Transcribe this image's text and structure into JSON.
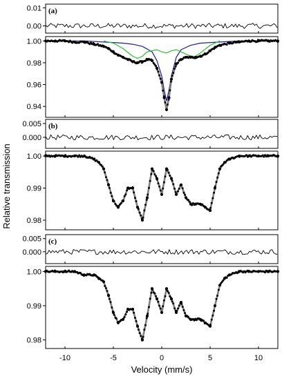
{
  "chart_data": {
    "type": "scatter",
    "xlabel": "Velocity (mm/s)",
    "ylabel": "Relative transmission",
    "xlim": [
      -12,
      12
    ],
    "x_ticks": [
      -10,
      -5,
      0,
      5,
      10
    ],
    "x_tick_labels": [
      "-10",
      "-5",
      "0",
      "5",
      "10"
    ],
    "colors": {
      "data_points": "#000000",
      "fit_total": "#7f7f7f",
      "residual": "#000000",
      "component_blue": "#1c1ca0",
      "component_green": "#22c822"
    },
    "panels": [
      {
        "label": "(a)",
        "residual_ylim": [
          -0.004,
          0.012
        ],
        "residual_ticks": [
          0.01,
          0.0
        ],
        "residual_tick_labels": [
          "0.01",
          "0.00"
        ],
        "spectrum_ylim": [
          0.93,
          1.004
        ],
        "spectrum_ticks": [
          1.0,
          0.98,
          0.96,
          0.94
        ],
        "spectrum_tick_labels": [
          "1.00",
          "0.98",
          "0.96",
          "0.94"
        ],
        "points_x": [
          -12,
          -11,
          -10,
          -9,
          -8,
          -7,
          -6,
          -5.5,
          -5,
          -4.5,
          -4,
          -3.5,
          -3,
          -2.5,
          -2,
          -1.5,
          -1,
          -0.5,
          0,
          0.25,
          0.5,
          0.75,
          1,
          1.5,
          2,
          2.5,
          3,
          3.5,
          4,
          4.5,
          5,
          5.5,
          6,
          7,
          8,
          9,
          10,
          11,
          12
        ],
        "points_y": [
          1.0,
          1.0,
          1.0,
          0.999,
          0.999,
          0.997,
          0.995,
          0.993,
          0.99,
          0.987,
          0.985,
          0.983,
          0.981,
          0.98,
          0.981,
          0.983,
          0.982,
          0.975,
          0.962,
          0.948,
          0.937,
          0.948,
          0.965,
          0.979,
          0.983,
          0.985,
          0.985,
          0.985,
          0.986,
          0.988,
          0.991,
          0.994,
          0.996,
          0.998,
          0.999,
          1.0,
          1.0,
          1.0,
          1.0
        ],
        "components": [
          {
            "color": "component_blue",
            "x": [
              -12,
              -8,
              -6,
              -4,
              -3,
              -2,
              -1,
              -0.5,
              0,
              0.25,
              0.5,
              0.75,
              1,
              1.5,
              2,
              3,
              4,
              6,
              8,
              12
            ],
            "y": [
              1.0,
              1.0,
              0.999,
              0.998,
              0.997,
              0.995,
              0.99,
              0.982,
              0.968,
              0.955,
              0.945,
              0.955,
              0.968,
              0.985,
              0.992,
              0.996,
              0.998,
              0.999,
              1.0,
              1.0
            ]
          },
          {
            "color": "component_green",
            "x": [
              -6,
              -5,
              -4,
              -3,
              -2.5,
              -2,
              -1.5,
              -1,
              -0.5,
              0,
              0.5,
              1,
              1.5,
              2,
              2.5,
              3,
              3.5,
              4,
              5,
              6
            ],
            "y": [
              1.0,
              0.998,
              0.993,
              0.986,
              0.984,
              0.986,
              0.99,
              0.991,
              0.992,
              0.99,
              0.989,
              0.991,
              0.992,
              0.99,
              0.988,
              0.986,
              0.986,
              0.989,
              0.996,
              1.0
            ]
          }
        ]
      },
      {
        "label": "(b)",
        "residual_ylim": [
          -0.004,
          0.0065
        ],
        "residual_ticks": [
          0.005,
          0.0
        ],
        "residual_tick_labels": [
          "0.005",
          "0.000"
        ],
        "spectrum_ylim": [
          0.977,
          1.0015
        ],
        "spectrum_ticks": [
          1.0,
          0.99,
          0.98
        ],
        "spectrum_tick_labels": [
          "1.00",
          "0.99",
          "0.98"
        ],
        "points_x": [
          -12,
          -11,
          -10,
          -9,
          -8,
          -7,
          -6.5,
          -6,
          -5.5,
          -5,
          -4.5,
          -4,
          -3.5,
          -3,
          -2.5,
          -2,
          -1.5,
          -1,
          -0.5,
          0,
          0.5,
          1,
          1.5,
          2,
          2.5,
          3,
          3.5,
          4,
          4.5,
          5,
          5.5,
          6,
          6.5,
          7,
          8,
          9,
          10,
          11,
          12
        ],
        "points_y": [
          1.0,
          1.0,
          1.0,
          1.0,
          1.0,
          0.999,
          0.998,
          0.996,
          0.991,
          0.986,
          0.984,
          0.986,
          0.99,
          0.99,
          0.984,
          0.98,
          0.987,
          0.996,
          0.993,
          0.988,
          0.996,
          0.993,
          0.988,
          0.991,
          0.987,
          0.985,
          0.985,
          0.985,
          0.984,
          0.983,
          0.99,
          0.996,
          0.998,
          0.999,
          1.0,
          1.0,
          1.0,
          1.0,
          1.0
        ]
      },
      {
        "label": "(c)",
        "residual_ylim": [
          -0.0045,
          0.0065
        ],
        "residual_ticks": [
          0.005,
          0.0
        ],
        "residual_tick_labels": [
          "0.005",
          "0.000"
        ],
        "spectrum_ylim": [
          0.9775,
          1.0015
        ],
        "spectrum_ticks": [
          1.0,
          0.99,
          0.98
        ],
        "spectrum_tick_labels": [
          "1.00",
          "0.99",
          "0.98"
        ],
        "points_x": [
          -12,
          -11,
          -10,
          -9,
          -8,
          -7,
          -6.5,
          -6,
          -5.5,
          -5,
          -4.5,
          -4,
          -3.5,
          -3,
          -2.5,
          -2,
          -1.5,
          -1,
          -0.5,
          0,
          0.5,
          1,
          1.5,
          2,
          2.5,
          3,
          3.5,
          4,
          4.5,
          5,
          5.5,
          6,
          6.5,
          7,
          8,
          9,
          10,
          11,
          12
        ],
        "points_y": [
          1.0,
          1.0,
          1.0,
          1.0,
          0.999,
          0.999,
          0.998,
          0.997,
          0.993,
          0.988,
          0.985,
          0.986,
          0.989,
          0.989,
          0.984,
          0.98,
          0.987,
          0.995,
          0.992,
          0.988,
          0.995,
          0.992,
          0.988,
          0.991,
          0.987,
          0.986,
          0.986,
          0.986,
          0.985,
          0.984,
          0.99,
          0.996,
          0.998,
          0.999,
          1.0,
          1.0,
          1.0,
          1.0,
          1.0
        ]
      }
    ]
  }
}
